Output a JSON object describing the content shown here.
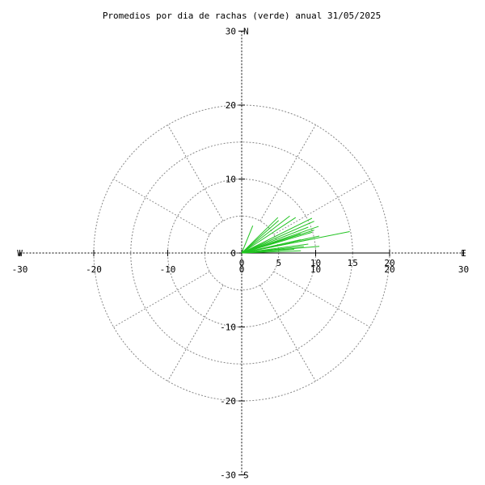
{
  "chart_data": {
    "type": "scatter",
    "title": "Promedios por dia de rachas (verde) anual 31/05/2025",
    "xlim": [
      -30,
      30
    ],
    "ylim": [
      -30,
      30
    ],
    "x_ticks": [
      -30,
      -20,
      -10,
      0,
      10,
      20,
      30
    ],
    "y_ticks": [
      -30,
      -20,
      -10,
      0,
      10,
      20,
      30
    ],
    "ring_labels": [
      "0",
      "5",
      "10",
      "15",
      "20"
    ],
    "compass": {
      "north": "N",
      "south": "S",
      "east": "E",
      "west": "W"
    },
    "grid": true,
    "colors": {
      "series": "#22c322",
      "grid": "#888888",
      "axis": "#000000"
    },
    "series": [
      {
        "values": [
          [
            1.5,
            3.7
          ],
          [
            4.9,
            4.8
          ],
          [
            5.0,
            4.4
          ],
          [
            6.5,
            5.0
          ],
          [
            7.3,
            4.8
          ],
          [
            9.5,
            4.7
          ],
          [
            9.8,
            4.3
          ],
          [
            9.0,
            3.5
          ],
          [
            10.4,
            3.6
          ],
          [
            9.8,
            3.1
          ],
          [
            14.6,
            2.9
          ],
          [
            8.0,
            2.6
          ],
          [
            9.5,
            2.8
          ],
          [
            10.5,
            2.3
          ],
          [
            8.0,
            1.8
          ],
          [
            9.6,
            1.9
          ],
          [
            9.0,
            1.2
          ],
          [
            8.4,
            0.9
          ],
          [
            10.5,
            0.9
          ],
          [
            7.1,
            0.5
          ],
          [
            8.0,
            0.3
          ]
        ]
      }
    ]
  }
}
